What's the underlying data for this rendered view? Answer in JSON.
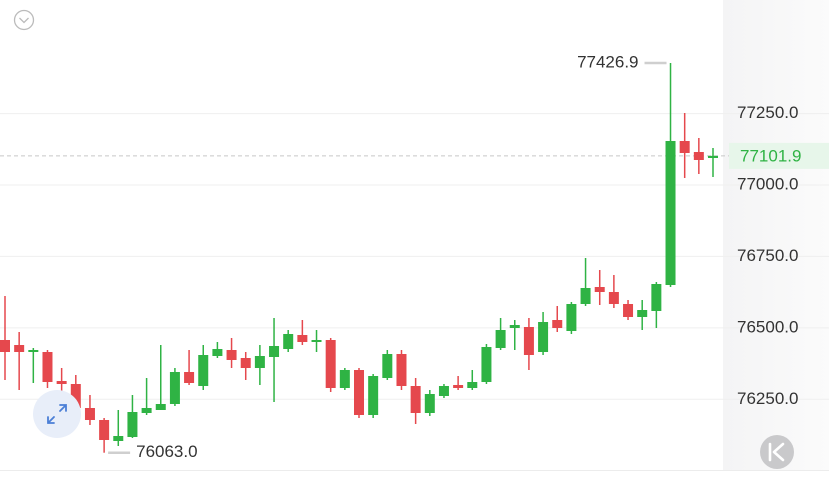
{
  "chart_data": {
    "type": "candlestick",
    "up_color": "#2fb344",
    "down_color": "#e5484d",
    "ylim": [
      76002.5,
      77647.5
    ],
    "yticks": [
      {
        "value": 76250,
        "label": "76250.0"
      },
      {
        "value": 76500,
        "label": "76500.0"
      },
      {
        "value": 76750,
        "label": "76750.0"
      },
      {
        "value": 77000,
        "label": "77000.0"
      },
      {
        "value": 77250,
        "label": "77250.0"
      }
    ],
    "grid": true,
    "open": [
      76457.5,
      76440,
      76415.5,
      76415.5,
      76314,
      76303.5,
      76219.5,
      76177.5,
      76104,
      76118,
      76202,
      76212.5,
      76233.5,
      76345.5,
      76296.5,
      76401.5,
      76422.5,
      76394.5,
      76359.5,
      76398,
      76426,
      76475,
      76450.5,
      76457.5,
      76289.5,
      76352.5,
      76195,
      76324.5,
      76408.5,
      76296.5,
      76202,
      76261.5,
      76300,
      76289.5,
      76310.5,
      76429.5,
      76499.5,
      76503,
      76415.5,
      76527.5,
      76489,
      76583.5,
      76643,
      76625.5,
      76583.5,
      76538,
      76559,
      76650,
      77154,
      77115.5,
      77094.5
    ],
    "high": [
      76611.5,
      76485.5,
      76429.5,
      76422.5,
      76359.5,
      76335,
      76265,
      76184.5,
      76212.5,
      76265,
      76324.5,
      76440,
      76359.5,
      76422.5,
      76440,
      76450.5,
      76464.5,
      76415.5,
      76440,
      76534.5,
      76492.5,
      76527.5,
      76492.5,
      76464.5,
      76359.5,
      76359.5,
      76338.5,
      76422.5,
      76422.5,
      76324.5,
      76282.5,
      76303.5,
      76331.5,
      76352.5,
      76443.5,
      76534.5,
      76527.5,
      76534.5,
      76555.5,
      76576.5,
      76590.5,
      76744.5,
      76702.5,
      76685,
      76597.5,
      76597.5,
      76660.5,
      77426.9,
      77252,
      77164.5,
      77129.5
    ],
    "low": [
      76317.5,
      76282.5,
      76307,
      76289.5,
      76265,
      76212.5,
      76160,
      76063,
      76086.5,
      76114.5,
      76195,
      76212.5,
      76226.5,
      76300,
      76282.5,
      76394.5,
      76359.5,
      76317.5,
      76300,
      76240.5,
      76415.5,
      76440,
      76415.5,
      76275.5,
      76282.5,
      76184.5,
      76184.5,
      76317.5,
      76282.5,
      76163.5,
      76191.5,
      76254.5,
      76282.5,
      76282.5,
      76303.5,
      76422.5,
      76422.5,
      76352.5,
      76405,
      76485.5,
      76478.5,
      76576.5,
      76580,
      76569.5,
      76527.5,
      76492.5,
      76499.5,
      76643,
      77024.5,
      77038.5,
      77028
    ],
    "close": [
      76415.5,
      76415.5,
      76422.5,
      76310.5,
      76303.5,
      76219.5,
      76177.5,
      76107.5,
      76121.5,
      76205.5,
      76219.5,
      76233.5,
      76345.5,
      76307,
      76405,
      76426,
      76387.5,
      76359.5,
      76401.5,
      76436.5,
      76478.5,
      76450.5,
      76457.5,
      76289.5,
      76352.5,
      76195,
      76331.5,
      76408.5,
      76296.5,
      76202,
      76268.5,
      76296.5,
      76289.5,
      76310.5,
      76433,
      76492.5,
      76510,
      76405,
      76520.5,
      76499.5,
      76583.5,
      76639.5,
      76625.5,
      76583.5,
      76538,
      76562.5,
      76653.5,
      77154,
      77112,
      77087.5,
      77101.9
    ],
    "max_label": "77426.9",
    "min_label": "76063.0",
    "last_price": 77101.9,
    "last_price_label": "77101.9"
  }
}
